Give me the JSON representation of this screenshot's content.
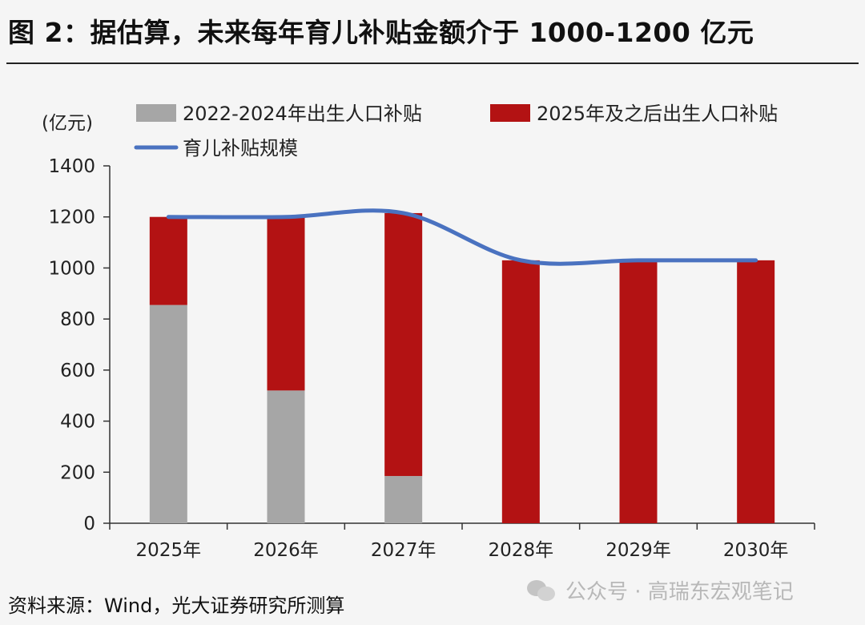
{
  "title": "图 2：据估算，未来每年育儿补贴金额介于 1000-1200 亿元",
  "source": "资料来源：Wind，光大证券研究所测算",
  "watermark": {
    "text": "公众号 · 高瑞东宏观笔记",
    "icon": "wechat-icon"
  },
  "colors": {
    "series_gray": "#a6a6a6",
    "series_red": "#b31213",
    "line_blue": "#4a72c0",
    "background": "#f5f5f5"
  },
  "chart_data": {
    "type": "bar",
    "stacked": true,
    "title": "",
    "ylabel": "(亿元)",
    "ylim": [
      0,
      1400
    ],
    "yticks": [
      0,
      200,
      400,
      600,
      800,
      1000,
      1200,
      1400
    ],
    "grid": false,
    "legend_position": "top",
    "categories": [
      "2025年",
      "2026年",
      "2027年",
      "2028年",
      "2029年",
      "2030年"
    ],
    "series": [
      {
        "name": "2022-2024年出生人口补贴",
        "kind": "bar",
        "values": [
          855,
          520,
          185,
          0,
          0,
          0
        ]
      },
      {
        "name": "2025年及之后出生人口补贴",
        "kind": "bar",
        "values": [
          345,
          680,
          1030,
          1030,
          1030,
          1030
        ]
      },
      {
        "name": "育儿补贴规模",
        "kind": "line",
        "values": [
          1200,
          1200,
          1215,
          1030,
          1030,
          1030
        ]
      }
    ]
  }
}
